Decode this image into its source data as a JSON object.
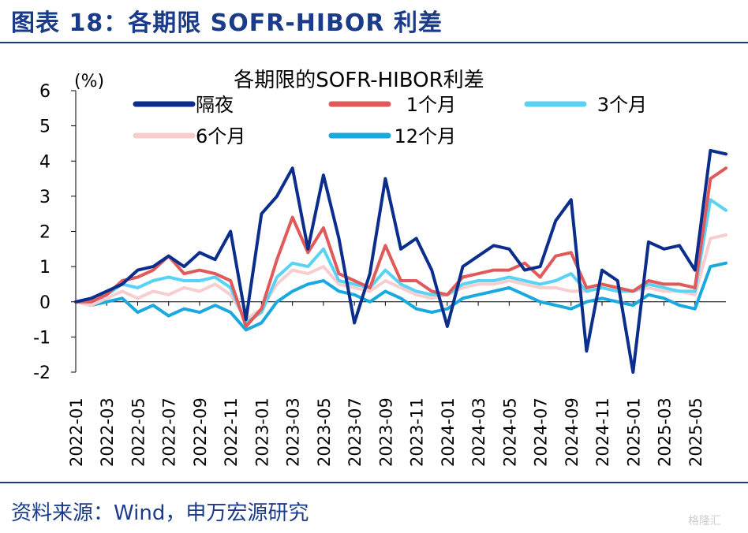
{
  "figure_title": "图表 18：各期限 SOFR-HIBOR 利差",
  "source": "资料来源：Wind，申万宏源研究",
  "watermark": "格隆汇",
  "colors": {
    "brand": "#1a3b8a",
    "overnight": "#0b2e8c",
    "m1": "#e05a5a",
    "m3": "#5ad2f4",
    "m6": "#f7cdd0",
    "m12": "#19a9de"
  },
  "chart_data": {
    "type": "line",
    "title": "各期限的SOFR-HIBOR利差",
    "ylabel": "(%)",
    "xlabel": "",
    "ylim": [
      -2,
      6
    ],
    "yticks": [
      -2,
      -1,
      0,
      1,
      2,
      3,
      4,
      5,
      6
    ],
    "xlim": [
      "2022-01",
      "2025-07"
    ],
    "xticks": [
      "2022-01",
      "2022-03",
      "2022-05",
      "2022-07",
      "2022-09",
      "2022-11",
      "2023-01",
      "2023-03",
      "2023-05",
      "2023-07",
      "2023-09",
      "2023-11",
      "2024-01",
      "2024-03",
      "2024-05",
      "2024-07",
      "2024-09",
      "2024-11",
      "2025-01",
      "2025-03",
      "2025-05"
    ],
    "legend_position": "top",
    "series": [
      {
        "name": "12个月",
        "color": "#19a9de",
        "points": [
          [
            "2022-01",
            0.0
          ],
          [
            "2022-02",
            -0.1
          ],
          [
            "2022-03",
            0.0
          ],
          [
            "2022-04",
            0.1
          ],
          [
            "2022-05",
            -0.3
          ],
          [
            "2022-06",
            -0.1
          ],
          [
            "2022-07",
            -0.4
          ],
          [
            "2022-08",
            -0.2
          ],
          [
            "2022-09",
            -0.3
          ],
          [
            "2022-10",
            -0.1
          ],
          [
            "2022-11",
            -0.3
          ],
          [
            "2022-12",
            -0.8
          ],
          [
            "2023-01",
            -0.6
          ],
          [
            "2023-02",
            0.0
          ],
          [
            "2023-03",
            0.3
          ],
          [
            "2023-04",
            0.5
          ],
          [
            "2023-05",
            0.6
          ],
          [
            "2023-06",
            0.3
          ],
          [
            "2023-07",
            0.2
          ],
          [
            "2023-08",
            0.0
          ],
          [
            "2023-09",
            0.3
          ],
          [
            "2023-10",
            0.1
          ],
          [
            "2023-11",
            -0.2
          ],
          [
            "2023-12",
            -0.3
          ],
          [
            "2024-01",
            -0.2
          ],
          [
            "2024-02",
            0.1
          ],
          [
            "2024-03",
            0.2
          ],
          [
            "2024-04",
            0.3
          ],
          [
            "2024-05",
            0.4
          ],
          [
            "2024-06",
            0.2
          ],
          [
            "2024-07",
            0.0
          ],
          [
            "2024-08",
            -0.1
          ],
          [
            "2024-09",
            -0.2
          ],
          [
            "2024-10",
            0.0
          ],
          [
            "2024-11",
            0.1
          ],
          [
            "2024-12",
            0.0
          ],
          [
            "2025-01",
            -0.1
          ],
          [
            "2025-02",
            0.2
          ],
          [
            "2025-03",
            0.1
          ],
          [
            "2025-04",
            -0.1
          ],
          [
            "2025-05",
            -0.2
          ],
          [
            "2025-06",
            1.0
          ],
          [
            "2025-07",
            1.1
          ]
        ]
      },
      {
        "name": "6个月",
        "color": "#f7cdd0",
        "points": [
          [
            "2022-01",
            0.0
          ],
          [
            "2022-02",
            -0.1
          ],
          [
            "2022-03",
            0.1
          ],
          [
            "2022-04",
            0.3
          ],
          [
            "2022-05",
            0.1
          ],
          [
            "2022-06",
            0.3
          ],
          [
            "2022-07",
            0.2
          ],
          [
            "2022-08",
            0.4
          ],
          [
            "2022-09",
            0.3
          ],
          [
            "2022-10",
            0.5
          ],
          [
            "2022-11",
            0.2
          ],
          [
            "2022-12",
            -0.5
          ],
          [
            "2023-01",
            -0.2
          ],
          [
            "2023-02",
            0.5
          ],
          [
            "2023-03",
            0.9
          ],
          [
            "2023-04",
            0.8
          ],
          [
            "2023-05",
            1.0
          ],
          [
            "2023-06",
            0.5
          ],
          [
            "2023-07",
            0.4
          ],
          [
            "2023-08",
            0.3
          ],
          [
            "2023-09",
            0.6
          ],
          [
            "2023-10",
            0.4
          ],
          [
            "2023-11",
            0.2
          ],
          [
            "2023-12",
            0.1
          ],
          [
            "2024-01",
            0.2
          ],
          [
            "2024-02",
            0.4
          ],
          [
            "2024-03",
            0.5
          ],
          [
            "2024-04",
            0.5
          ],
          [
            "2024-05",
            0.6
          ],
          [
            "2024-06",
            0.5
          ],
          [
            "2024-07",
            0.4
          ],
          [
            "2024-08",
            0.4
          ],
          [
            "2024-09",
            0.3
          ],
          [
            "2024-10",
            0.3
          ],
          [
            "2024-11",
            0.4
          ],
          [
            "2024-12",
            0.3
          ],
          [
            "2025-01",
            0.3
          ],
          [
            "2025-02",
            0.4
          ],
          [
            "2025-03",
            0.3
          ],
          [
            "2025-04",
            0.3
          ],
          [
            "2025-05",
            0.2
          ],
          [
            "2025-06",
            1.8
          ],
          [
            "2025-07",
            1.9
          ]
        ]
      },
      {
        "name": "3个月",
        "color": "#5ad2f4",
        "points": [
          [
            "2022-01",
            0.0
          ],
          [
            "2022-02",
            0.0
          ],
          [
            "2022-03",
            0.2
          ],
          [
            "2022-04",
            0.5
          ],
          [
            "2022-05",
            0.4
          ],
          [
            "2022-06",
            0.6
          ],
          [
            "2022-07",
            0.7
          ],
          [
            "2022-08",
            0.6
          ],
          [
            "2022-09",
            0.6
          ],
          [
            "2022-10",
            0.7
          ],
          [
            "2022-11",
            0.4
          ],
          [
            "2022-12",
            -0.6
          ],
          [
            "2023-01",
            -0.3
          ],
          [
            "2023-02",
            0.7
          ],
          [
            "2023-03",
            1.1
          ],
          [
            "2023-04",
            1.0
          ],
          [
            "2023-05",
            1.5
          ],
          [
            "2023-06",
            0.6
          ],
          [
            "2023-07",
            0.5
          ],
          [
            "2023-08",
            0.4
          ],
          [
            "2023-09",
            0.9
          ],
          [
            "2023-10",
            0.5
          ],
          [
            "2023-11",
            0.3
          ],
          [
            "2023-12",
            0.2
          ],
          [
            "2024-01",
            0.2
          ],
          [
            "2024-02",
            0.5
          ],
          [
            "2024-03",
            0.6
          ],
          [
            "2024-04",
            0.6
          ],
          [
            "2024-05",
            0.7
          ],
          [
            "2024-06",
            0.6
          ],
          [
            "2024-07",
            0.5
          ],
          [
            "2024-08",
            0.6
          ],
          [
            "2024-09",
            0.8
          ],
          [
            "2024-10",
            0.3
          ],
          [
            "2024-11",
            0.4
          ],
          [
            "2024-12",
            0.3
          ],
          [
            "2025-01",
            0.3
          ],
          [
            "2025-02",
            0.5
          ],
          [
            "2025-03",
            0.4
          ],
          [
            "2025-04",
            0.3
          ],
          [
            "2025-05",
            0.3
          ],
          [
            "2025-06",
            2.9
          ],
          [
            "2025-07",
            2.6
          ]
        ]
      },
      {
        "name": "1个月",
        "color": "#e05a5a",
        "points": [
          [
            "2022-01",
            0.0
          ],
          [
            "2022-02",
            0.0
          ],
          [
            "2022-03",
            0.2
          ],
          [
            "2022-04",
            0.6
          ],
          [
            "2022-05",
            0.7
          ],
          [
            "2022-06",
            0.9
          ],
          [
            "2022-07",
            1.3
          ],
          [
            "2022-08",
            0.8
          ],
          [
            "2022-09",
            0.9
          ],
          [
            "2022-10",
            0.8
          ],
          [
            "2022-11",
            0.6
          ],
          [
            "2022-12",
            -0.7
          ],
          [
            "2023-01",
            -0.2
          ],
          [
            "2023-02",
            1.2
          ],
          [
            "2023-03",
            2.4
          ],
          [
            "2023-04",
            1.4
          ],
          [
            "2023-05",
            2.1
          ],
          [
            "2023-06",
            0.8
          ],
          [
            "2023-07",
            0.6
          ],
          [
            "2023-08",
            0.4
          ],
          [
            "2023-09",
            1.6
          ],
          [
            "2023-10",
            0.6
          ],
          [
            "2023-11",
            0.6
          ],
          [
            "2023-12",
            0.3
          ],
          [
            "2024-01",
            0.2
          ],
          [
            "2024-02",
            0.7
          ],
          [
            "2024-03",
            0.8
          ],
          [
            "2024-04",
            0.9
          ],
          [
            "2024-05",
            0.9
          ],
          [
            "2024-06",
            1.1
          ],
          [
            "2024-07",
            0.7
          ],
          [
            "2024-08",
            1.3
          ],
          [
            "2024-09",
            1.4
          ],
          [
            "2024-10",
            0.4
          ],
          [
            "2024-11",
            0.5
          ],
          [
            "2024-12",
            0.4
          ],
          [
            "2025-01",
            0.3
          ],
          [
            "2025-02",
            0.6
          ],
          [
            "2025-03",
            0.5
          ],
          [
            "2025-04",
            0.5
          ],
          [
            "2025-05",
            0.4
          ],
          [
            "2025-06",
            3.5
          ],
          [
            "2025-07",
            3.8
          ]
        ]
      },
      {
        "name": "隔夜",
        "color": "#0b2e8c",
        "points": [
          [
            "2022-01",
            0.0
          ],
          [
            "2022-02",
            0.1
          ],
          [
            "2022-03",
            0.3
          ],
          [
            "2022-04",
            0.5
          ],
          [
            "2022-05",
            0.9
          ],
          [
            "2022-06",
            1.0
          ],
          [
            "2022-07",
            1.3
          ],
          [
            "2022-08",
            1.0
          ],
          [
            "2022-09",
            1.4
          ],
          [
            "2022-10",
            1.2
          ],
          [
            "2022-11",
            2.0
          ],
          [
            "2022-12",
            -0.5
          ],
          [
            "2023-01",
            2.5
          ],
          [
            "2023-02",
            3.0
          ],
          [
            "2023-03",
            3.8
          ],
          [
            "2023-04",
            1.5
          ],
          [
            "2023-05",
            3.6
          ],
          [
            "2023-06",
            1.8
          ],
          [
            "2023-07",
            -0.6
          ],
          [
            "2023-08",
            0.8
          ],
          [
            "2023-09",
            3.5
          ],
          [
            "2023-10",
            1.5
          ],
          [
            "2023-11",
            1.8
          ],
          [
            "2023-12",
            0.9
          ],
          [
            "2024-01",
            -0.7
          ],
          [
            "2024-02",
            1.0
          ],
          [
            "2024-03",
            1.3
          ],
          [
            "2024-04",
            1.6
          ],
          [
            "2024-05",
            1.5
          ],
          [
            "2024-06",
            0.9
          ],
          [
            "2024-07",
            1.0
          ],
          [
            "2024-08",
            2.3
          ],
          [
            "2024-09",
            2.9
          ],
          [
            "2024-10",
            -1.4
          ],
          [
            "2024-11",
            0.9
          ],
          [
            "2024-12",
            0.6
          ],
          [
            "2025-01",
            -2.0
          ],
          [
            "2025-02",
            1.7
          ],
          [
            "2025-03",
            1.5
          ],
          [
            "2025-04",
            1.6
          ],
          [
            "2025-05",
            0.9
          ],
          [
            "2025-06",
            4.3
          ],
          [
            "2025-07",
            4.2
          ]
        ]
      }
    ],
    "legend_order": [
      "隔夜",
      "1个月",
      "3个月",
      "6个月",
      "12个月"
    ]
  }
}
